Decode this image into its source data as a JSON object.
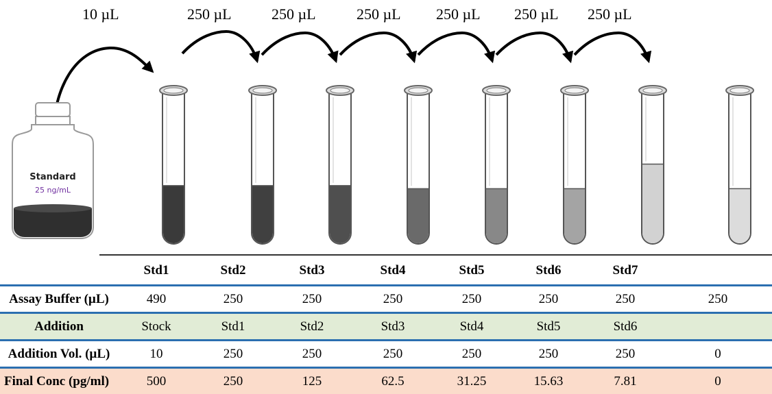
{
  "transfer_labels": [
    "10 µL",
    "250 µL",
    "250 µL",
    "250 µL",
    "250 µL",
    "250 µL",
    "250 µL"
  ],
  "bottle": {
    "title": "Standard",
    "concentration": "25 ng/mL"
  },
  "colors": {
    "accent_line": "#2b6fb0",
    "addition_row_bg": "#e1ecd6",
    "conc_row_bg": "#fbdccb",
    "concentration_text": "#7030a0"
  },
  "tubes": [
    {
      "fill": 0.38,
      "color": "#3a3a3a"
    },
    {
      "fill": 0.38,
      "color": "#404040"
    },
    {
      "fill": 0.38,
      "color": "#4f4f4f"
    },
    {
      "fill": 0.36,
      "color": "#6a6a6a"
    },
    {
      "fill": 0.36,
      "color": "#888888"
    },
    {
      "fill": 0.36,
      "color": "#a4a4a4"
    },
    {
      "fill": 0.52,
      "color": "#d2d2d2"
    },
    {
      "fill": 0.36,
      "color": "#dcdcdc"
    }
  ],
  "table": {
    "headers": [
      "",
      "Std1",
      "Std2",
      "Std3",
      "Std4",
      "Std5",
      "Std6",
      "Std7",
      ""
    ],
    "rows": [
      {
        "label": "Assay Buffer (µL)",
        "values": [
          "490",
          "250",
          "250",
          "250",
          "250",
          "250",
          "250",
          "250"
        ]
      },
      {
        "label": "Addition",
        "values": [
          "Stock",
          "Std1",
          "Std2",
          "Std3",
          "Std4",
          "Std5",
          "Std6",
          ""
        ]
      },
      {
        "label": "Addition Vol. (µL)",
        "values": [
          "10",
          "250",
          "250",
          "250",
          "250",
          "250",
          "250",
          "0"
        ]
      },
      {
        "label": "Final Conc (pg/ml)",
        "values": [
          "500",
          "250",
          "125",
          "62.5",
          "31.25",
          "15.63",
          "7.81",
          "0"
        ]
      }
    ]
  }
}
